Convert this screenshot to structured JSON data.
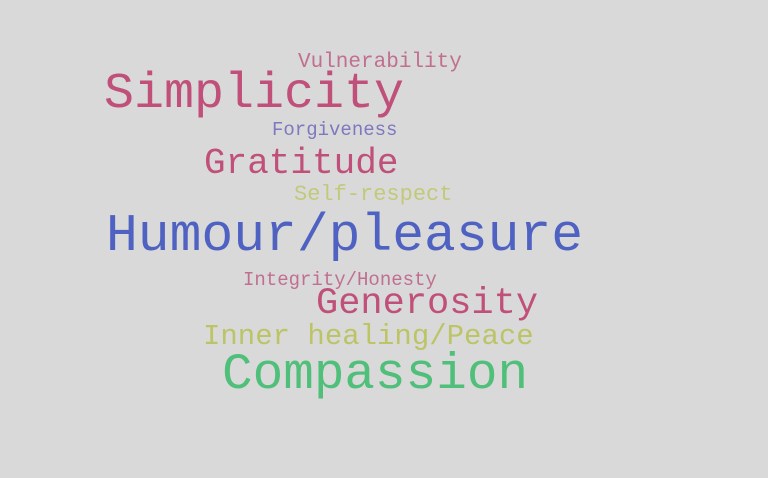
{
  "words": [
    {
      "text": "Vulnerability",
      "color": "#c0708e"
    },
    {
      "text": "Simplicity",
      "color": "#c0507a"
    },
    {
      "text": "Forgiveness",
      "color": "#7d78c0"
    },
    {
      "text": "Gratitude",
      "color": "#c0507a"
    },
    {
      "text": "Self-respect",
      "color": "#c2c97a"
    },
    {
      "text": "Humour/pleasure",
      "color": "#4f62c2"
    },
    {
      "text": "Integrity/Honesty",
      "color": "#c0708e"
    },
    {
      "text": "Generosity",
      "color": "#c0507a"
    },
    {
      "text": "Inner healing/Peace",
      "color": "#bcc466"
    },
    {
      "text": "Compassion",
      "color": "#4fbf7a"
    }
  ]
}
